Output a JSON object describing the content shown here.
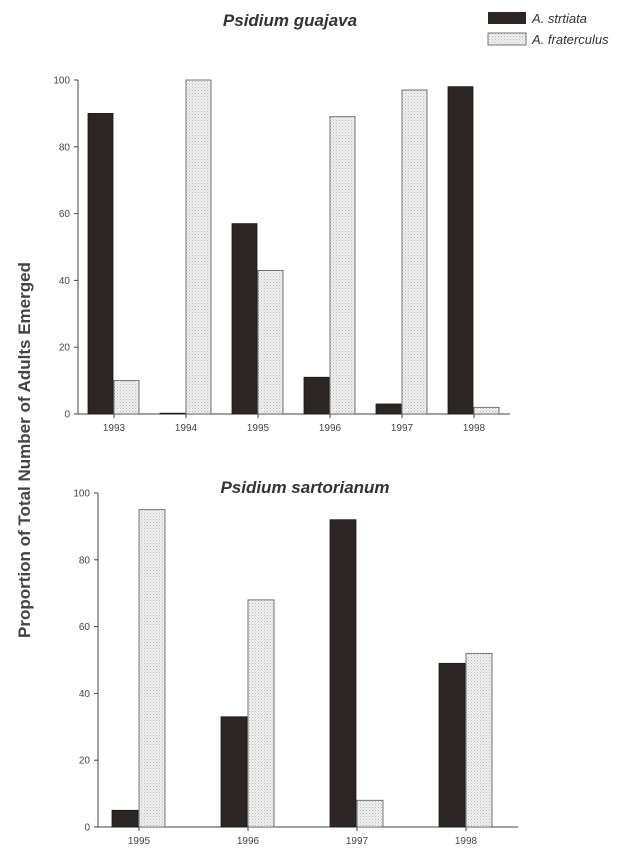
{
  "ylabel": "Proportion of Total Number of Adults Emerged",
  "legend": [
    {
      "label": "A. strtiata",
      "color": "#2b2523"
    },
    {
      "label": "A. fraterculus",
      "color": "#ececec"
    }
  ],
  "chart_data": [
    {
      "type": "bar",
      "title": "Psidium guajava",
      "categories": [
        "1993",
        "1994",
        "1995",
        "1996",
        "1997",
        "1998"
      ],
      "series": [
        {
          "name": "A. strtiata",
          "values": [
            90,
            0,
            57,
            11,
            3,
            98
          ]
        },
        {
          "name": "A. fraterculus",
          "values": [
            10,
            100,
            43,
            89,
            97,
            2
          ]
        }
      ],
      "ylim": [
        0,
        100
      ],
      "yticks": [
        "0",
        "20",
        "40",
        "60",
        "80",
        "100"
      ],
      "grid": false,
      "legend_position": "top-right"
    },
    {
      "type": "bar",
      "title": "Psidium sartorianum",
      "categories": [
        "1995",
        "1996",
        "1997",
        "1998"
      ],
      "series": [
        {
          "name": "A. strtiata",
          "values": [
            5,
            33,
            92,
            49
          ]
        },
        {
          "name": "A. fraterculus",
          "values": [
            95,
            68,
            8,
            52
          ]
        }
      ],
      "ylim": [
        0,
        100
      ],
      "yticks": [
        "0",
        "20",
        "40",
        "60",
        "80",
        "100"
      ],
      "grid": false
    }
  ]
}
